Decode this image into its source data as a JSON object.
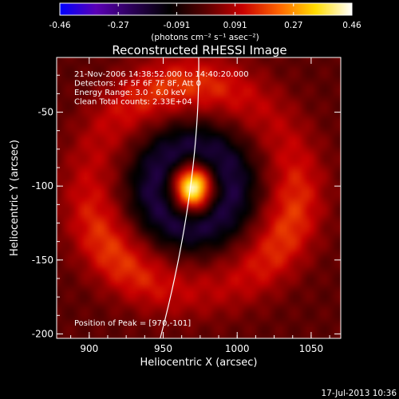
{
  "colorbar": {
    "ticks": [
      "-0.46",
      "-0.27",
      "-0.091",
      "0.091",
      "0.27",
      "0.46"
    ],
    "range": [
      -0.46,
      0.46
    ],
    "units": "(photons cm⁻² s⁻¹ asec⁻²)",
    "colors": [
      "#0000ff",
      "#5a00b4",
      "#2a0055",
      "#000000",
      "#5a0000",
      "#c80000",
      "#ff6400",
      "#ffdc00",
      "#ffffff"
    ]
  },
  "chart_data": {
    "type": "heatmap",
    "title": "Reconstructed RHESSI Image",
    "xlabel": "Heliocentric X (arcsec)",
    "ylabel": "Heliocentric Y (arcsec)",
    "xlim": [
      878,
      1070
    ],
    "ylim": [
      -203,
      -13
    ],
    "xticks": [
      900,
      950,
      1000,
      1050
    ],
    "yticks": [
      -50,
      -100,
      -150,
      -200
    ],
    "annotations": [
      "21-Nov-2006 14:38:52.000 to 14:40:20.000",
      "Detectors: 4F 5F 6F 7F 8F, Att 0",
      "Energy Range: 3.0 - 6.0 keV",
      "Clean     Total counts: 2.33E+04"
    ],
    "peak_label": "Position of Peak = [970,-101]",
    "peak": {
      "x": 970,
      "y": -101,
      "value": 0.46
    },
    "inner_ring": {
      "radius_arcsec": 26,
      "value": -0.2
    },
    "outer_ring": {
      "radius_arcsec": 70,
      "value": 0.16
    },
    "limb": [
      {
        "x": 974,
        "y": -13
      },
      {
        "x": 968,
        "y": -100
      },
      {
        "x": 948,
        "y": -203
      }
    ],
    "footer": "17-Jul-2013 10:36"
  },
  "colors": {
    "background": "#000000",
    "text": "#ffffff",
    "limb": "#ffffff"
  }
}
